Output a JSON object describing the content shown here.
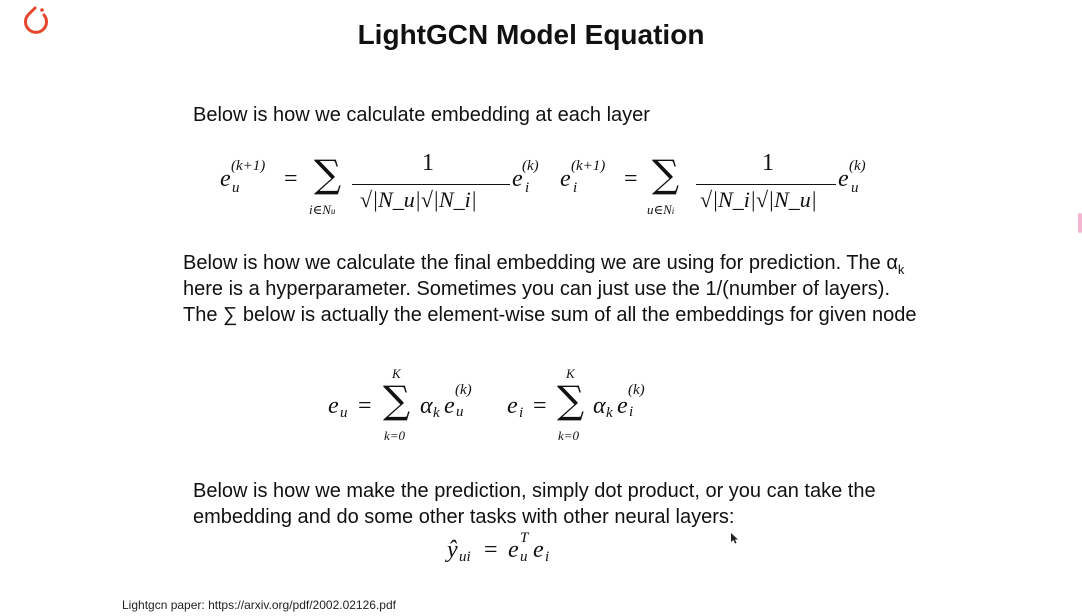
{
  "title": "LightGCN Model Equation",
  "logo": {
    "icon": "pytorch-logo",
    "color": "#e5452c"
  },
  "section1": {
    "text": "Below is how we calculate embedding at each layer",
    "eq_user": {
      "lhs": "e",
      "lhs_sub": "u",
      "lhs_sup": "(k+1)",
      "eq": "=",
      "sum": "∑",
      "sum_sub": "i∈N",
      "sum_sub_sub": "u",
      "num": "1",
      "den": "√|N_u|√|N_i|",
      "rhs": "e",
      "rhs_sub": "i",
      "rhs_sup": "(k)"
    },
    "eq_item": {
      "lhs": "e",
      "lhs_sub": "i",
      "lhs_sup": "(k+1)",
      "eq": "=",
      "sum": "∑",
      "sum_sub": "u∈N",
      "sum_sub_sub": "i",
      "num": "1",
      "den": "√|N_i|√|N_u|",
      "rhs": "e",
      "rhs_sub": "u",
      "rhs_sup": "(k)"
    }
  },
  "section2": {
    "line1": "Below is how we calculate the final embedding we are using for prediction. The α",
    "line1_sub": "k",
    "line2": "here is a hyperparameter. Sometimes you can just use the 1/(number of layers).",
    "line3": "The ∑ below is actually the element-wise sum of all the embeddings for given node",
    "eq_user": {
      "lhs": "e",
      "lhs_sub": "u",
      "eq": "=",
      "sum": "∑",
      "upper": "K",
      "lower": "k=0",
      "alpha": "α",
      "alpha_sub": "k",
      "rhs": "e",
      "rhs_sub": "u",
      "rhs_sup": "(k)"
    },
    "eq_item": {
      "lhs": "e",
      "lhs_sub": "i",
      "eq": "=",
      "sum": "∑",
      "upper": "K",
      "lower": "k=0",
      "alpha": "α",
      "alpha_sub": "k",
      "rhs": "e",
      "rhs_sub": "i",
      "rhs_sup": "(k)"
    }
  },
  "section3": {
    "line1": "Below is how we make the prediction, simply dot product, or you can take the",
    "line2": "embedding and do some other tasks with other neural layers:",
    "eq": {
      "lhs": "ŷ",
      "lhs_sub": "ui",
      "eq": "=",
      "e1": "e",
      "e1_sub": "u",
      "e1_sup": "T",
      "e2": "e",
      "e2_sub": "i"
    }
  },
  "footer": "Lightgcn paper: https://arxiv.org/pdf/2002.02126.pdf"
}
